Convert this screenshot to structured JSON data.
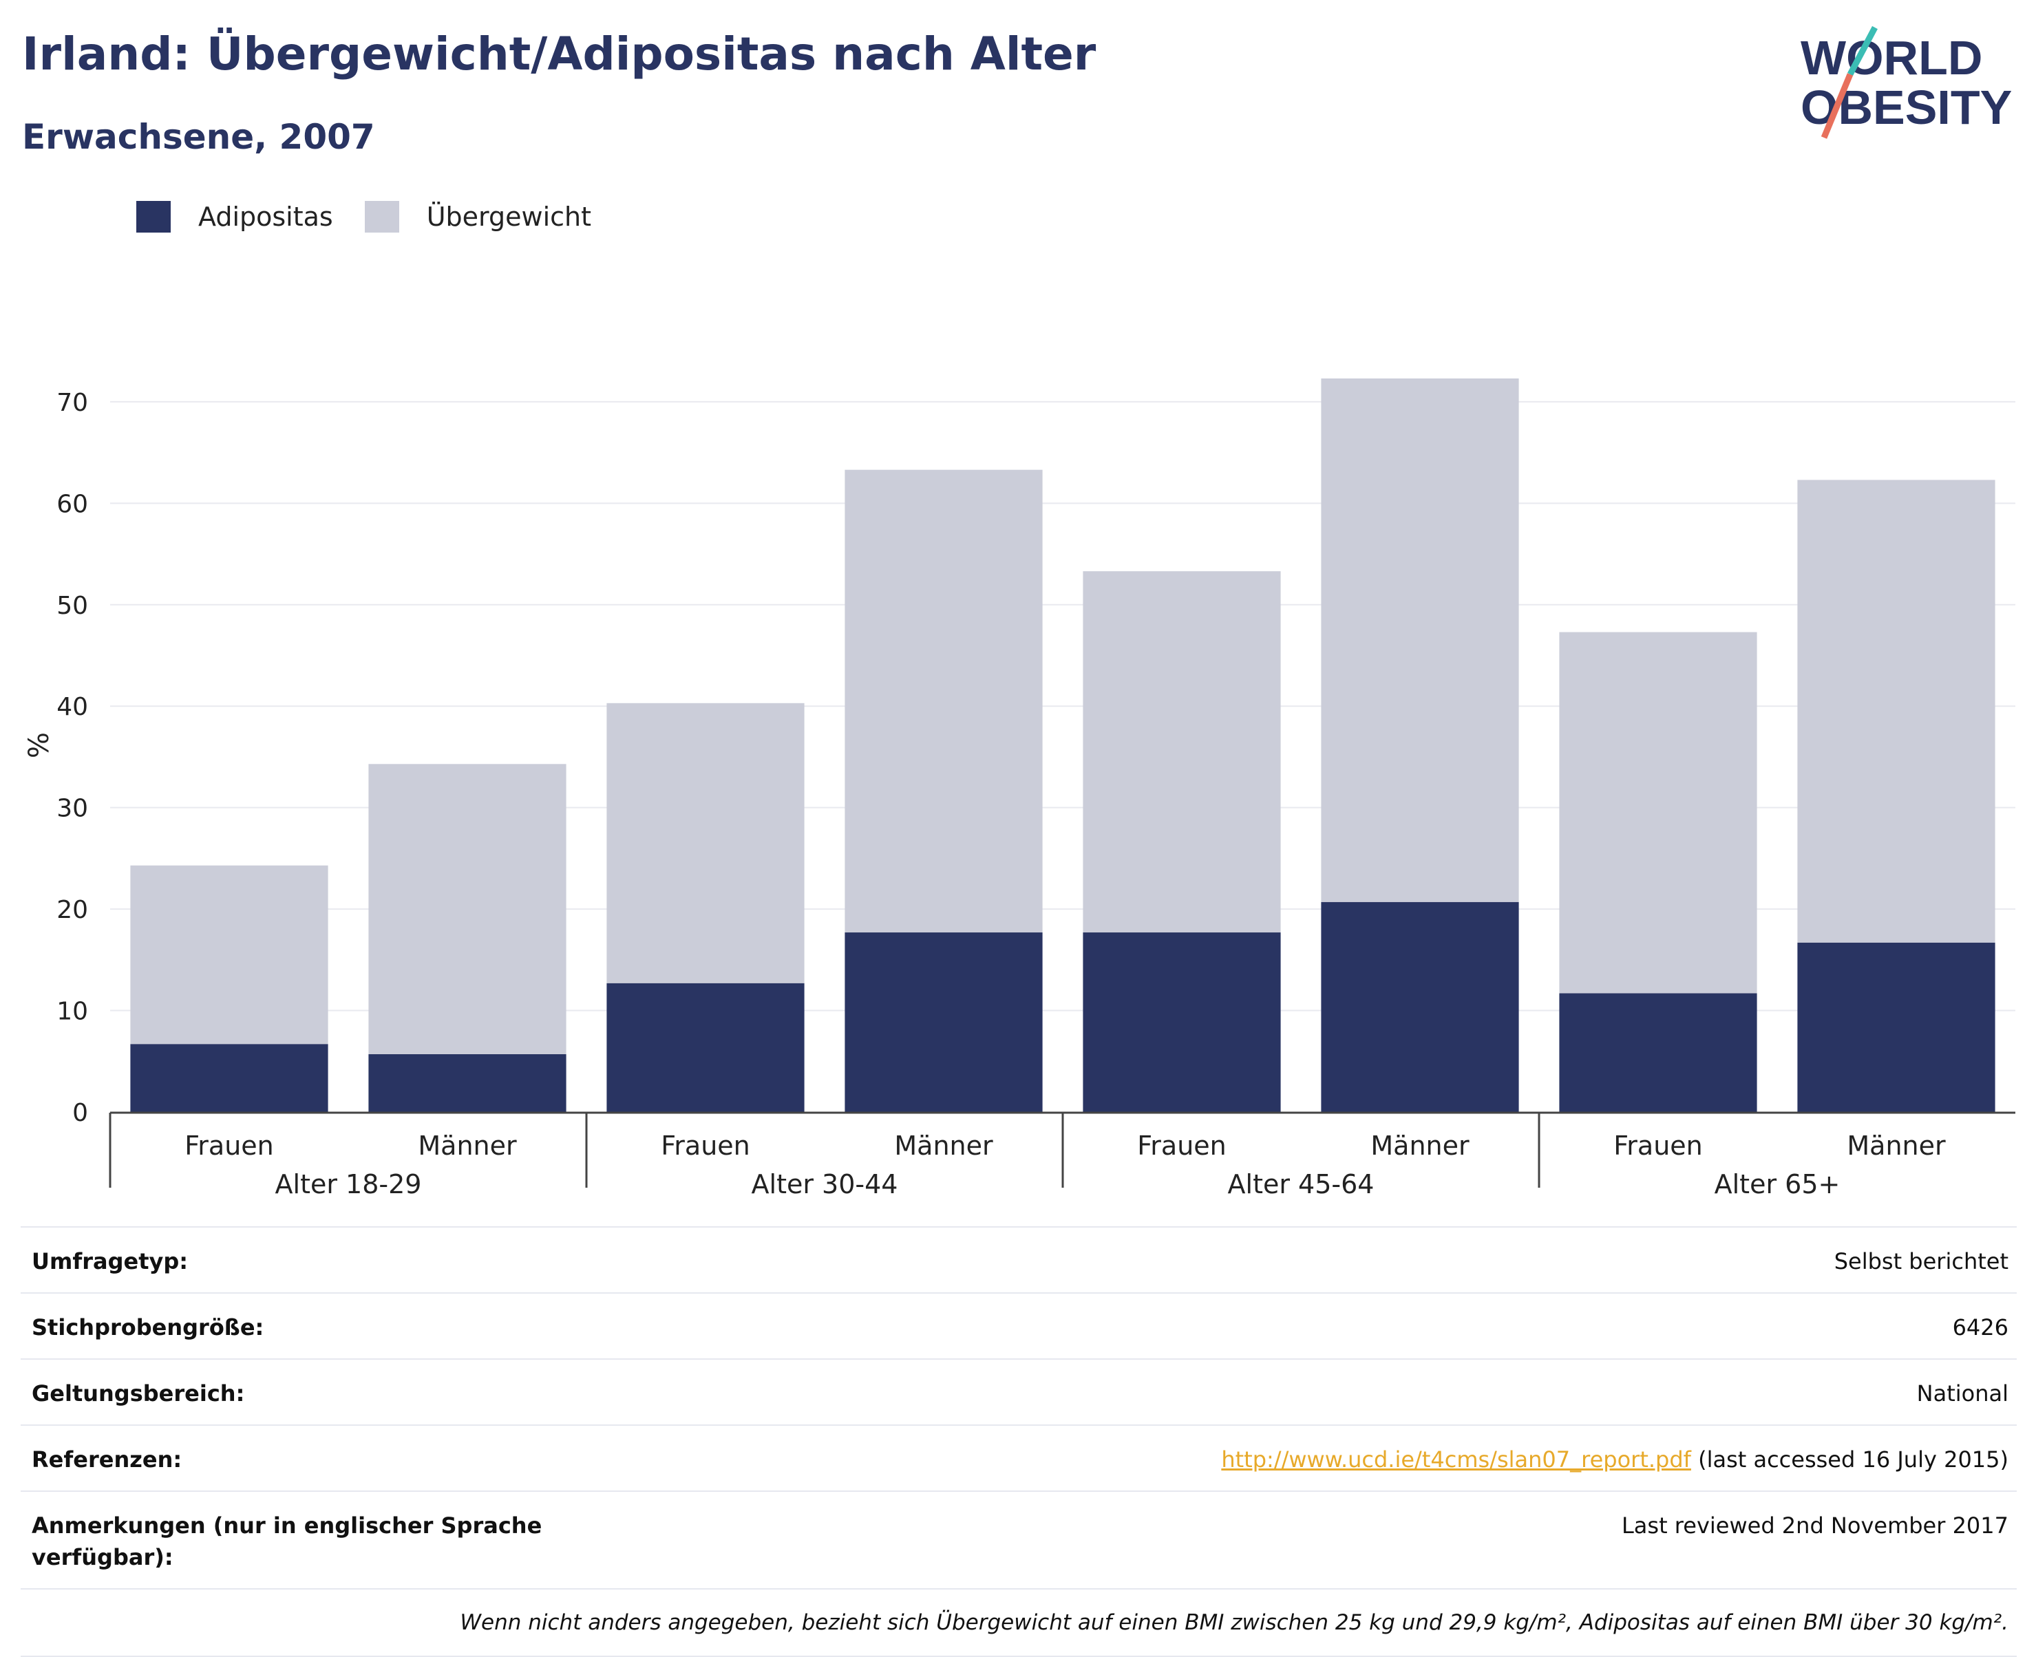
{
  "header": {
    "title": "Irland: Übergewicht/Adipositas nach Alter",
    "subtitle": "Erwachsene, 2007"
  },
  "logo": {
    "line1": "WORLD",
    "line2": "OBESITY"
  },
  "colors": {
    "obesity": "#293462",
    "overweight": "#cbcdd9",
    "title": "#293462",
    "link": "#e7a92a",
    "accent_teal": "#3bbdb4",
    "accent_coral": "#e8705c"
  },
  "legend": [
    {
      "label": "Adipositas",
      "color": "#293462"
    },
    {
      "label": "Übergewicht",
      "color": "#cbcdd9"
    }
  ],
  "chart_data": {
    "type": "bar",
    "stacked": true,
    "ylabel": "%",
    "ylim": [
      0,
      72.3
    ],
    "yticks": [
      0,
      10,
      20,
      30,
      40,
      50,
      60,
      70
    ],
    "grid": true,
    "legend_position": "top-left",
    "groups": [
      "Alter 18-29",
      "Alter 30-44",
      "Alter 45-64",
      "Alter 65+"
    ],
    "categories": [
      "Frauen",
      "Männer",
      "Frauen",
      "Männer",
      "Frauen",
      "Männer",
      "Frauen",
      "Männer"
    ],
    "series": [
      {
        "name": "Adipositas",
        "values": [
          6.7,
          5.7,
          12.7,
          17.7,
          17.7,
          20.7,
          11.7,
          16.7
        ]
      },
      {
        "name": "Übergewicht",
        "values": [
          17.6,
          28.6,
          27.6,
          45.6,
          35.6,
          51.6,
          35.6,
          45.6
        ]
      }
    ]
  },
  "meta": [
    {
      "key": "Umfragetyp:",
      "value": "Selbst berichtet"
    },
    {
      "key": "Stichprobengröße:",
      "value": "6426"
    },
    {
      "key": "Geltungsbereich:",
      "value": "National"
    },
    {
      "key": "Referenzen:",
      "link": "http://www.ucd.ie/t4cms/slan07_report.pdf",
      "value": " (last accessed 16 July 2015)"
    },
    {
      "key": "Anmerkungen (nur in englischer Sprache verfügbar):",
      "value": "Last reviewed 2nd November 2017"
    }
  ],
  "footnote": "Wenn nicht anders angegeben, bezieht sich Übergewicht auf einen BMI zwischen 25 kg und 29,9 kg/m², Adipositas auf einen BMI über 30 kg/m²."
}
